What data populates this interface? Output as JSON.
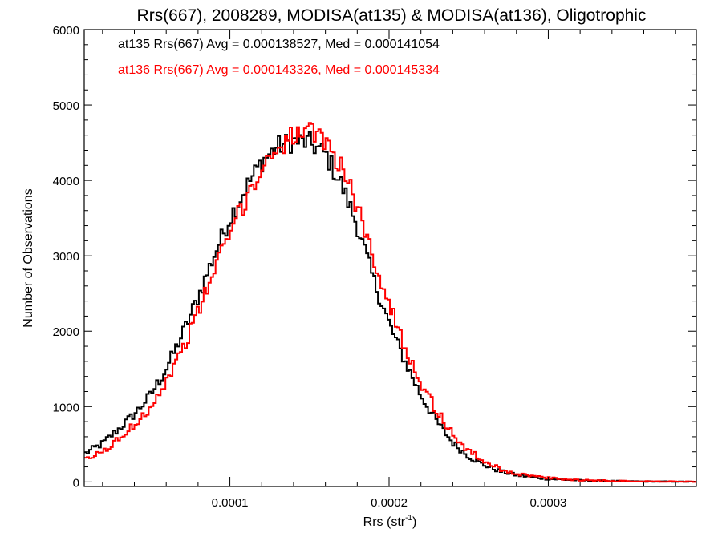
{
  "chart_data": {
    "type": "histogram",
    "title": "Rrs(667), 2008289, MODISA(at135) & MODISA(at136), Oligotrophic",
    "xlabel": "Rrs (str",
    "xlabel_sup": "-1",
    "xlabel_close": ")",
    "ylabel": "Number of Observations",
    "xlim": [
      8.5e-06,
      0.000393
    ],
    "ylim": [
      -60,
      6000
    ],
    "x_ticks": [
      {
        "value": 0.0001,
        "label": "0.0001"
      },
      {
        "value": 0.0002,
        "label": "0.0002"
      },
      {
        "value": 0.0003,
        "label": "0.0003"
      }
    ],
    "y_ticks": [
      {
        "value": 0,
        "label": "0"
      },
      {
        "value": 1000,
        "label": "1000"
      },
      {
        "value": 2000,
        "label": "2000"
      },
      {
        "value": 3000,
        "label": "3000"
      },
      {
        "value": 4000,
        "label": "4000"
      },
      {
        "value": 5000,
        "label": "5000"
      },
      {
        "value": 6000,
        "label": "6000"
      }
    ],
    "grid": false,
    "legend_placement": "top-left",
    "bin_width": 1.5e-06,
    "series": [
      {
        "label": "at135 Rrs(667) Avg = 0.000138527, Med = 0.000141054",
        "color": "#000000",
        "curve": [
          [
            8.5e-06,
            370
          ],
          [
            2e-05,
            510
          ],
          [
            3e-05,
            700
          ],
          [
            4e-05,
            900
          ],
          [
            5e-05,
            1150
          ],
          [
            6e-05,
            1500
          ],
          [
            7e-05,
            1950
          ],
          [
            8e-05,
            2450
          ],
          [
            9e-05,
            3000
          ],
          [
            0.0001,
            3500
          ],
          [
            0.00011,
            3900
          ],
          [
            0.00012,
            4250
          ],
          [
            0.00013,
            4450
          ],
          [
            0.00014,
            4520
          ],
          [
            0.00015,
            4500
          ],
          [
            0.00016,
            4350
          ],
          [
            0.00017,
            3950
          ],
          [
            0.00018,
            3400
          ],
          [
            0.00019,
            2700
          ],
          [
            0.0002,
            2100
          ],
          [
            0.00021,
            1600
          ],
          [
            0.00022,
            1150
          ],
          [
            0.00023,
            800
          ],
          [
            0.00024,
            520
          ],
          [
            0.00025,
            340
          ],
          [
            0.00026,
            220
          ],
          [
            0.00027,
            140
          ],
          [
            0.00028,
            90
          ],
          [
            0.0003,
            40
          ],
          [
            0.00032,
            20
          ],
          [
            0.00035,
            8
          ],
          [
            0.000393,
            2
          ]
        ]
      },
      {
        "label": "at136 Rrs(667) Avg = 0.000143326, Med = 0.000145334",
        "color": "#ff0000",
        "curve": [
          [
            8.5e-06,
            280
          ],
          [
            2e-05,
            400
          ],
          [
            3e-05,
            560
          ],
          [
            4e-05,
            760
          ],
          [
            5e-05,
            1000
          ],
          [
            6e-05,
            1330
          ],
          [
            7e-05,
            1750
          ],
          [
            8e-05,
            2250
          ],
          [
            9e-05,
            2800
          ],
          [
            0.0001,
            3300
          ],
          [
            0.00011,
            3750
          ],
          [
            0.00012,
            4150
          ],
          [
            0.00013,
            4450
          ],
          [
            0.00014,
            4600
          ],
          [
            0.00015,
            4620
          ],
          [
            0.00016,
            4520
          ],
          [
            0.00017,
            4200
          ],
          [
            0.00018,
            3650
          ],
          [
            0.00019,
            3000
          ],
          [
            0.0002,
            2350
          ],
          [
            0.00021,
            1800
          ],
          [
            0.00022,
            1320
          ],
          [
            0.00023,
            940
          ],
          [
            0.00024,
            630
          ],
          [
            0.00025,
            410
          ],
          [
            0.00026,
            270
          ],
          [
            0.00027,
            170
          ],
          [
            0.00028,
            110
          ],
          [
            0.0003,
            50
          ],
          [
            0.00032,
            25
          ],
          [
            0.00035,
            10
          ],
          [
            0.000393,
            3
          ]
        ]
      }
    ]
  }
}
